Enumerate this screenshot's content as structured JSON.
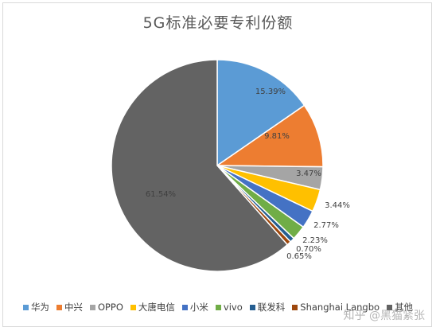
{
  "chart_data": {
    "type": "pie",
    "title": "5G标准必要专利份额",
    "slices": [
      {
        "name": "华为",
        "value": 15.39,
        "label": "15.39%",
        "color": "#5b9bd5"
      },
      {
        "name": "中兴",
        "value": 9.81,
        "label": "9.81%",
        "color": "#ed7d31"
      },
      {
        "name": "OPPO",
        "value": 3.47,
        "label": "3.47%",
        "color": "#a5a5a5"
      },
      {
        "name": "大唐电信",
        "value": 3.44,
        "label": "3.44%",
        "color": "#ffc000"
      },
      {
        "name": "小米",
        "value": 2.77,
        "label": "2.77%",
        "color": "#4472c4"
      },
      {
        "name": "vivo",
        "value": 2.23,
        "label": "2.23%",
        "color": "#70ad47"
      },
      {
        "name": "联发科",
        "value": 0.7,
        "label": "0.70%",
        "color": "#255e91"
      },
      {
        "name": "Shanghai Langbo",
        "value": 0.65,
        "label": "0.65%",
        "color": "#9e480e"
      },
      {
        "name": "其他",
        "value": 61.54,
        "label": "61.54%",
        "color": "#636363"
      }
    ],
    "legend_position": "bottom"
  },
  "watermark": "知乎 @黑猫紧张"
}
